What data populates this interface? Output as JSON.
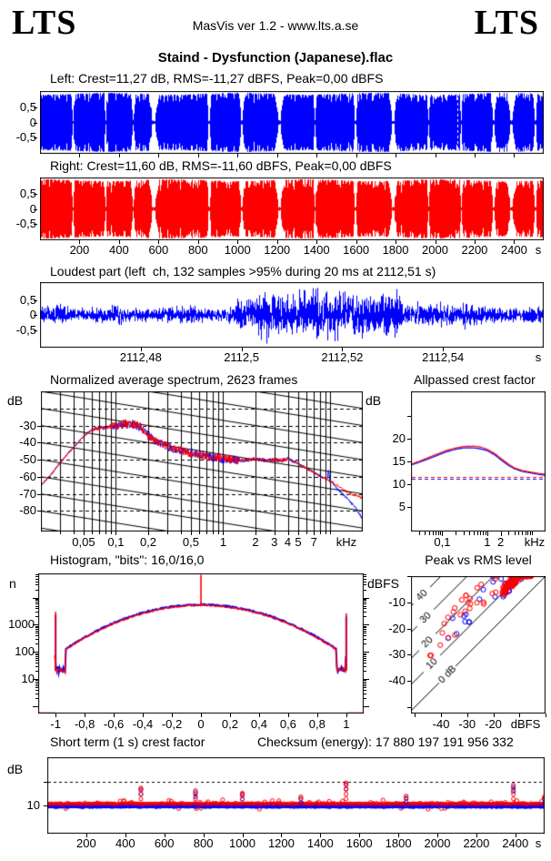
{
  "header": {
    "logo_left": "LTS",
    "app_info": "MasVis ver 1.2 - www.lts.a.se",
    "logo_right": "LTS"
  },
  "title": "Staind - Dysfunction (Japanese).flac",
  "colors": {
    "left_channel": "#0000ff",
    "right_channel": "#ff0000",
    "axis": "#000000",
    "background": "#ffffff"
  },
  "waveforms": {
    "left_label": "Left: Crest=11,27 dB, RMS=-11,27 dBFS, Peak=0,00 dBFS",
    "right_label": "Right: Crest=11,60 dB, RMS=-11,60 dBFS, Peak=0,00 dBFS",
    "yticks": [
      "0,5",
      "0",
      "-0,5"
    ],
    "ytick_values": [
      0.5,
      0,
      -0.5
    ],
    "xticks": [
      "200",
      "400",
      "600",
      "800",
      "1000",
      "1200",
      "1400",
      "1600",
      "1800",
      "2000",
      "2200",
      "2400"
    ],
    "xtick_values": [
      200,
      400,
      600,
      800,
      1000,
      1200,
      1400,
      1600,
      1800,
      2000,
      2200,
      2400
    ],
    "x_unit": "s"
  },
  "loudest": {
    "title": "Loudest part (left  ch, 132 samples >95% during 20 ms at 2112,51 s)",
    "yticks": [
      "0,5",
      "0",
      "-0,5"
    ],
    "ytick_values": [
      0.5,
      0,
      -0.5
    ],
    "xticks": [
      "2112,48",
      "2112,5",
      "2112,52",
      "2112,54"
    ],
    "xtick_values": [
      2112.48,
      2112.5,
      2112.52,
      2112.54
    ],
    "x_unit": "s"
  },
  "spectrum": {
    "title": "Normalized average spectrum, 2623 frames",
    "y_unit_left": "dB",
    "y_unit_right": "dB",
    "yticks": [
      "-30",
      "-40",
      "-50",
      "-60",
      "-70",
      "-80"
    ],
    "ytick_values": [
      -30,
      -40,
      -50,
      -60,
      -70,
      -80
    ],
    "xticks": [
      "0,05",
      "0,1",
      "0,2",
      "0,5",
      "1",
      "2",
      "3",
      "4",
      "5",
      "7"
    ],
    "xtick_values": [
      0.05,
      0.1,
      0.2,
      0.5,
      1,
      2,
      3,
      4,
      5,
      7
    ],
    "x_unit": "kHz"
  },
  "allpassed": {
    "title": "Allpassed crest factor",
    "yticks": [
      "20",
      "15",
      "10",
      "5"
    ],
    "ytick_values": [
      20,
      15,
      10,
      5
    ],
    "xticks": [
      "0,1",
      "1",
      "2"
    ],
    "xtick_values": [
      0.1,
      1,
      2
    ],
    "x_unit": "kHz"
  },
  "histogram": {
    "title": "Histogram, \"bits\": 16,0/16,0",
    "y_label": "n",
    "yticks": [
      "1000",
      "100",
      "10"
    ],
    "ytick_values": [
      1000,
      100,
      10
    ],
    "xticks": [
      "-1",
      "-0,8",
      "-0,6",
      "-0,4",
      "-0,2",
      "0",
      "0,2",
      "0,4",
      "0,6",
      "0,8",
      "1"
    ],
    "xtick_values": [
      -1,
      -0.8,
      -0.6,
      -0.4,
      -0.2,
      0,
      0.2,
      0.4,
      0.6,
      0.8,
      1
    ]
  },
  "peak_rms": {
    "title": "Peak vs RMS level",
    "y_label": "dBFS",
    "yticks": [
      "-10",
      "-20",
      "-30",
      "-40"
    ],
    "ytick_values": [
      -10,
      -20,
      -30,
      -40
    ],
    "xticks": [
      "-40",
      "-30",
      "-20"
    ],
    "xtick_values": [
      -40,
      -30,
      -20
    ],
    "x_unit": "dBFS",
    "diag_labels": [
      "40",
      "30",
      "20",
      "10",
      "0 dB"
    ]
  },
  "short_term": {
    "title": "Short term (1 s) crest factor",
    "checksum": "Checksum (energy): 17 880 197 191 956 332",
    "y_unit": "dB",
    "yticks": [
      "10"
    ],
    "ytick_values": [
      10
    ],
    "xticks": [
      "200",
      "400",
      "600",
      "800",
      "1000",
      "1200",
      "1400",
      "1600",
      "1800",
      "2000",
      "2200",
      "2400"
    ],
    "xtick_values": [
      200,
      400,
      600,
      800,
      1000,
      1200,
      1400,
      1600,
      1800,
      2000,
      2200,
      2400
    ],
    "x_unit": "s"
  },
  "chart_data": [
    {
      "id": "waveform-left",
      "type": "area",
      "channel": "left",
      "color": "#0000ff",
      "duration_s": 2550,
      "y_range": [
        -1.05,
        1.05
      ],
      "track_gaps_s": [
        165,
        330,
        470,
        575,
        855,
        1020,
        1210,
        1390,
        1595,
        1785,
        1965,
        2130,
        2295,
        2385,
        2505
      ],
      "gap_widths_s": [
        6,
        5,
        8,
        18,
        7,
        10,
        16,
        6,
        8,
        14,
        6,
        5,
        10,
        16,
        8
      ],
      "loudest_marker_s": 2112.51
    },
    {
      "id": "waveform-right",
      "type": "area",
      "channel": "right",
      "color": "#ff0000",
      "duration_s": 2550,
      "y_range": [
        -1.05,
        1.05
      ],
      "track_gaps_s": [
        165,
        330,
        470,
        575,
        855,
        1020,
        1210,
        1390,
        1595,
        1785,
        1965,
        2130,
        2295,
        2385,
        2505
      ],
      "gap_widths_s": [
        6,
        5,
        8,
        18,
        7,
        10,
        16,
        6,
        8,
        14,
        6,
        5,
        10,
        16,
        8
      ],
      "loudest_marker_s": null
    },
    {
      "id": "loudest-part",
      "type": "line",
      "color": "#0000ff",
      "x_range_s": [
        2112.46,
        2112.56
      ],
      "y_range": [
        -1.06,
        1.06
      ],
      "burst_s": [
        2112.503,
        2112.532
      ],
      "rms_amplitude": 0.42,
      "burst_amplitude": 1.25
    },
    {
      "id": "spectrum",
      "type": "line",
      "x_range_khz": [
        0.02,
        20
      ],
      "y_range_db": [
        -92,
        -10
      ],
      "grid": {
        "h_dashed_step_db": 10,
        "diagonal_slope_db_per_decade": -10
      },
      "series": [
        {
          "name": "left",
          "color": "#0000ff",
          "points": [
            [
              0.02,
              -65
            ],
            [
              0.025,
              -58.5
            ],
            [
              0.03,
              -52
            ],
            [
              0.035,
              -47
            ],
            [
              0.04,
              -43
            ],
            [
              0.045,
              -39.5
            ],
            [
              0.05,
              -36.5
            ],
            [
              0.055,
              -34
            ],
            [
              0.06,
              -32.5
            ],
            [
              0.07,
              -31.5
            ],
            [
              0.08,
              -31.5
            ],
            [
              0.09,
              -30.5
            ],
            [
              0.1,
              -30.5
            ],
            [
              0.11,
              -29.5
            ],
            [
              0.13,
              -29
            ],
            [
              0.15,
              -29.5
            ],
            [
              0.17,
              -31
            ],
            [
              0.2,
              -36
            ],
            [
              0.25,
              -40
            ],
            [
              0.3,
              -42
            ],
            [
              0.35,
              -43.5
            ],
            [
              0.4,
              -44.5
            ],
            [
              0.5,
              -46
            ],
            [
              0.6,
              -47
            ],
            [
              0.8,
              -48.5
            ],
            [
              1,
              -49.5
            ],
            [
              1.3,
              -50
            ],
            [
              1.6,
              -50.5
            ],
            [
              2,
              -49.5
            ],
            [
              2.5,
              -50.5
            ],
            [
              3,
              -50
            ],
            [
              3.5,
              -50.5
            ],
            [
              4,
              -49.5
            ],
            [
              4.5,
              -51
            ],
            [
              5,
              -52.5
            ],
            [
              6,
              -55
            ],
            [
              7,
              -57.5
            ],
            [
              8,
              -59.5
            ],
            [
              9,
              -61
            ],
            [
              9.3,
              -62
            ],
            [
              9.6,
              -56
            ],
            [
              9.9,
              -63
            ],
            [
              10,
              -62.5
            ],
            [
              11,
              -65.5
            ],
            [
              12,
              -68
            ],
            [
              13,
              -70
            ],
            [
              14,
              -72
            ],
            [
              15,
              -74
            ],
            [
              16,
              -76
            ],
            [
              18,
              -80
            ],
            [
              20,
              -85
            ]
          ]
        },
        {
          "name": "right",
          "color": "#ff0000",
          "points": [
            [
              0.02,
              -65
            ],
            [
              0.025,
              -58.5
            ],
            [
              0.03,
              -52
            ],
            [
              0.035,
              -47
            ],
            [
              0.04,
              -43
            ],
            [
              0.045,
              -39.5
            ],
            [
              0.05,
              -36.5
            ],
            [
              0.055,
              -34
            ],
            [
              0.06,
              -32.5
            ],
            [
              0.07,
              -31.5
            ],
            [
              0.08,
              -31.5
            ],
            [
              0.09,
              -30.5
            ],
            [
              0.1,
              -30.5
            ],
            [
              0.11,
              -29.5
            ],
            [
              0.13,
              -29
            ],
            [
              0.15,
              -29.5
            ],
            [
              0.17,
              -31
            ],
            [
              0.2,
              -36
            ],
            [
              0.25,
              -40
            ],
            [
              0.3,
              -42
            ],
            [
              0.35,
              -43.5
            ],
            [
              0.4,
              -44.5
            ],
            [
              0.5,
              -46
            ],
            [
              0.6,
              -47
            ],
            [
              0.8,
              -48.5
            ],
            [
              1,
              -49.5
            ],
            [
              1.3,
              -50
            ],
            [
              1.6,
              -50.5
            ],
            [
              2,
              -49.5
            ],
            [
              2.5,
              -50.5
            ],
            [
              3,
              -50
            ],
            [
              3.5,
              -50.5
            ],
            [
              4,
              -49.5
            ],
            [
              4.5,
              -51
            ],
            [
              5,
              -52.5
            ],
            [
              6,
              -55
            ],
            [
              7,
              -57.5
            ],
            [
              8,
              -59.5
            ],
            [
              9,
              -61
            ],
            [
              10,
              -62.5
            ],
            [
              11,
              -64
            ],
            [
              12,
              -66
            ],
            [
              14,
              -68.5
            ],
            [
              16,
              -70.5
            ],
            [
              18,
              -71.5
            ],
            [
              20,
              -72.5
            ]
          ]
        }
      ]
    },
    {
      "id": "allpassed-crest",
      "type": "line",
      "x_range_khz": [
        0.02,
        20
      ],
      "y_range_db": [
        -0.5,
        30.5
      ],
      "series": [
        {
          "name": "left",
          "color": "#0000ff",
          "points": [
            [
              0.02,
              14.2
            ],
            [
              0.03,
              14.8
            ],
            [
              0.05,
              15.6
            ],
            [
              0.08,
              16.4
            ],
            [
              0.12,
              17.1
            ],
            [
              0.2,
              17.7
            ],
            [
              0.3,
              18
            ],
            [
              0.5,
              18
            ],
            [
              0.7,
              17.8
            ],
            [
              1,
              17.4
            ],
            [
              1.5,
              16.4
            ],
            [
              2,
              15.4
            ],
            [
              3,
              14.1
            ],
            [
              4,
              13.4
            ],
            [
              6,
              12.8
            ],
            [
              10,
              12.4
            ],
            [
              15,
              12.1
            ],
            [
              20,
              11.9
            ]
          ]
        },
        {
          "name": "right",
          "color": "#ff0000",
          "points": [
            [
              0.02,
              14.4
            ],
            [
              0.03,
              15
            ],
            [
              0.05,
              15.9
            ],
            [
              0.08,
              16.7
            ],
            [
              0.12,
              17.4
            ],
            [
              0.2,
              18
            ],
            [
              0.3,
              18.3
            ],
            [
              0.5,
              18.4
            ],
            [
              0.7,
              18.2
            ],
            [
              1,
              17.7
            ],
            [
              1.5,
              16.7
            ],
            [
              2,
              15.7
            ],
            [
              3,
              14.4
            ],
            [
              4,
              13.6
            ],
            [
              6,
              13
            ],
            [
              10,
              12.6
            ],
            [
              15,
              12.3
            ],
            [
              20,
              12.2
            ]
          ]
        }
      ],
      "dashed_levels": [
        {
          "color": "#0000ff",
          "db": 11.27
        },
        {
          "color": "#ff0000",
          "db": 11.6
        }
      ]
    },
    {
      "id": "histogram",
      "type": "line-log",
      "x_range": [
        -1.12,
        1.12
      ],
      "y_log_range": [
        0.55,
        80000
      ],
      "dome": {
        "peak_red": 5200,
        "peak_blue": 5500,
        "sigma": 0.34
      },
      "dip": {
        "from": 0.935,
        "to": 0.998,
        "value": 20
      },
      "spikes_red": [
        [
          -1,
          3000
        ],
        [
          -0.5,
          1750
        ],
        [
          0,
          70000
        ],
        [
          0.5,
          1800
        ],
        [
          1,
          2600
        ]
      ],
      "spikes_blue": [
        [
          -1,
          2300
        ],
        [
          -0.5,
          1600
        ],
        [
          0,
          6500
        ],
        [
          0.5,
          1650
        ],
        [
          1,
          2000
        ]
      ]
    },
    {
      "id": "peak-vs-rms",
      "type": "scatter",
      "x_range_db": [
        -51.5,
        0
      ],
      "y_range_db": [
        -52.5,
        0
      ],
      "diagonals_db": [
        0,
        10,
        20,
        30,
        40
      ],
      "n_red_cluster": 150,
      "n_red_tail": 28,
      "n_blue_cluster": 70,
      "n_blue_tail": 14
    },
    {
      "id": "short-term-crest",
      "type": "scatter",
      "x_range_s": [
        0,
        2550
      ],
      "y_range_db": [
        -1.9,
        30.4
      ],
      "dashed_levels_db": [
        10,
        20
      ],
      "base_red_db": 10.45,
      "base_blue_db": 9.85,
      "step_s": 3,
      "spikes": [
        [
          480,
          17.4
        ],
        [
          760,
          16.3
        ],
        [
          1000,
          15.2
        ],
        [
          1300,
          13.7
        ],
        [
          1532,
          19.6
        ],
        [
          1840,
          14.0
        ],
        [
          2390,
          18.6
        ],
        [
          2548,
          13.6
        ]
      ]
    }
  ]
}
